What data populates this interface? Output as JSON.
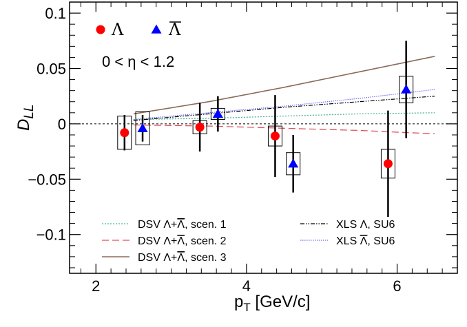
{
  "chart_data": {
    "type": "scatter",
    "xlabel": "p",
    "xlabel_sub": "T",
    "xlabel_unit": " [GeV/c]",
    "ylabel": "D",
    "ylabel_sub": "LL",
    "xlim": [
      1.65,
      6.8
    ],
    "ylim": [
      -0.135,
      0.11
    ],
    "x_ticks": [
      2,
      4,
      6
    ],
    "x_tick_labels": [
      "2",
      "4",
      "6"
    ],
    "y_ticks": [
      -0.1,
      -0.05,
      0,
      0.05,
      0.1
    ],
    "y_tick_labels": [
      "−0.1",
      "−0.05",
      "0",
      "0.05",
      "0.1"
    ],
    "annotation": "0 < η < 1.2",
    "marker_legend": [
      {
        "label": "Λ",
        "color": "#ff0000",
        "marker": "circle"
      },
      {
        "label": "Λ",
        "bar": true,
        "color": "#0000ff",
        "marker": "triangle"
      }
    ],
    "series": [
      {
        "name": "Λ",
        "marker": "circle",
        "color": "#ff0000",
        "points": [
          {
            "x": 2.38,
            "y": -0.008,
            "stat_err": 0.016,
            "syst_err": 0.015
          },
          {
            "x": 3.38,
            "y": -0.003,
            "stat_err": 0.022,
            "syst_err": 0.006
          },
          {
            "x": 4.38,
            "y": -0.011,
            "stat_err": 0.037,
            "syst_err": 0.009
          },
          {
            "x": 5.88,
            "y": -0.036,
            "stat_err": 0.048,
            "syst_err": 0.013
          }
        ]
      },
      {
        "name": "Λ̄",
        "marker": "triangle",
        "color": "#0000ff",
        "points": [
          {
            "x": 2.62,
            "y": -0.004,
            "stat_err": 0.012,
            "syst_err": 0.015
          },
          {
            "x": 3.62,
            "y": 0.009,
            "stat_err": 0.016,
            "syst_err": 0.005
          },
          {
            "x": 4.62,
            "y": -0.036,
            "stat_err": 0.026,
            "syst_err": 0.01
          },
          {
            "x": 6.12,
            "y": 0.031,
            "stat_err": 0.044,
            "syst_err": 0.012
          }
        ]
      }
    ],
    "curves": [
      {
        "name": "scen1",
        "color": "#4cb39a",
        "dash": "2,2",
        "width": 1.3,
        "x": [
          2.5,
          3.5,
          4.5,
          5.5,
          6.5
        ],
        "y": [
          0.004,
          0.005,
          0.007,
          0.009,
          0.01
        ]
      },
      {
        "name": "scen2",
        "color": "#e0505a",
        "dash": "10,5",
        "width": 1.3,
        "x": [
          2.5,
          3.5,
          4.5,
          5.5,
          6.5
        ],
        "y": [
          -0.001,
          -0.002,
          -0.004,
          -0.006,
          -0.009
        ]
      },
      {
        "name": "scen3",
        "color": "#8b6a5a",
        "dash": "",
        "width": 1.6,
        "x": [
          2.5,
          3.5,
          4.5,
          5.5,
          6.5
        ],
        "y": [
          0.009,
          0.02,
          0.033,
          0.047,
          0.061
        ]
      },
      {
        "name": "xls_lambda",
        "color": "#000000",
        "dash": "6,2,1.5,2,1.5,2",
        "width": 1.2,
        "x": [
          2.5,
          3.5,
          4.5,
          5.5,
          6.5
        ],
        "y": [
          0.003,
          0.009,
          0.015,
          0.02,
          0.025
        ]
      },
      {
        "name": "xls_lambdabar",
        "color": "#6a6aff",
        "dash": "1.5,1.5",
        "width": 1.2,
        "x": [
          2.5,
          3.5,
          4.5,
          5.5,
          6.5
        ],
        "y": [
          0.004,
          0.01,
          0.016,
          0.023,
          0.031
        ]
      }
    ],
    "curve_legend": [
      {
        "key": "scen1",
        "prefix": "DSV Λ+",
        "bar_letter": "Λ",
        "suffix": ", scen. 1"
      },
      {
        "key": "scen2",
        "prefix": "DSV Λ+",
        "bar_letter": "Λ",
        "suffix": ", scen. 2"
      },
      {
        "key": "scen3",
        "prefix": "DSV Λ+",
        "bar_letter": "Λ",
        "suffix": ", scen. 3"
      },
      {
        "key": "xls_lambda",
        "prefix": "XLS Λ, SU6",
        "bar_letter": "",
        "suffix": ""
      },
      {
        "key": "xls_lambdabar",
        "prefix": "XLS ",
        "bar_letter": "Λ",
        "suffix": ", SU6"
      }
    ],
    "grid": false,
    "zero_line": true
  }
}
